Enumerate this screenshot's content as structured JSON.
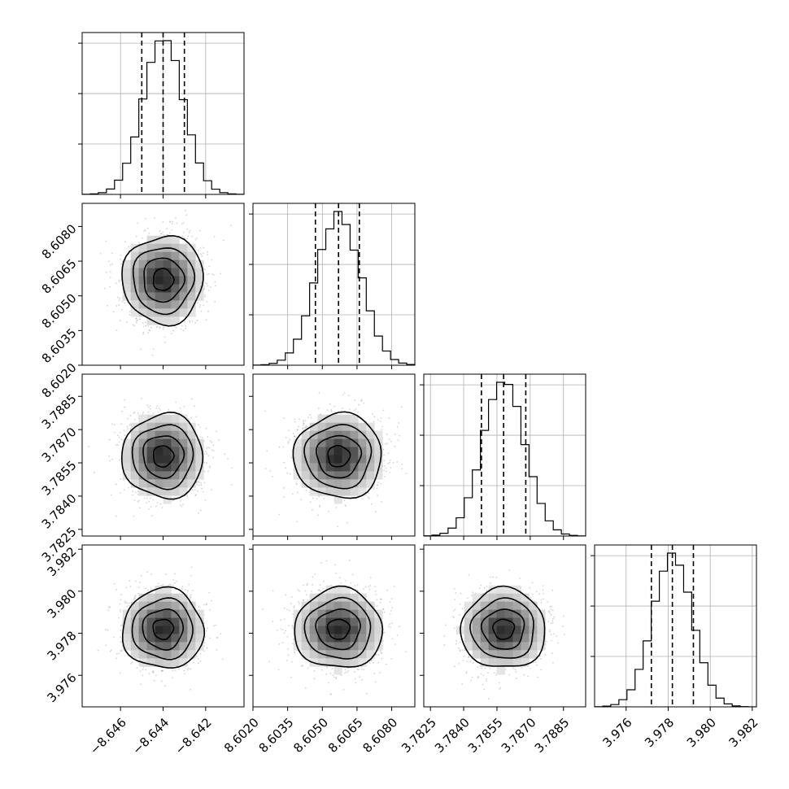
{
  "chart_data": {
    "type": "corner",
    "title": "",
    "variables": [
      {
        "label": "",
        "range": [
          -8.6478,
          -8.6402
        ],
        "ticks": [
          -8.646,
          -8.644,
          -8.642
        ],
        "tick_labels": [
          "−8.646",
          "−8.644",
          "−8.642"
        ],
        "quantiles": [
          -8.645,
          -8.644,
          -8.643
        ],
        "mean": -8.644,
        "sd": 0.00095,
        "hist_seed": 11
      },
      {
        "label": "",
        "range": [
          8.602,
          8.609
        ],
        "ticks": [
          8.602,
          8.6035,
          8.605,
          8.6065,
          8.608
        ],
        "tick_labels": [
          "8.6020",
          "8.6035",
          "8.6050",
          "8.6065",
          "8.6080"
        ],
        "quantiles": [
          8.6047,
          8.6057,
          8.6066
        ],
        "mean": 8.6057,
        "sd": 0.00095,
        "hist_seed": 23
      },
      {
        "label": "",
        "range": [
          3.7822,
          3.7895
        ],
        "ticks": [
          3.7825,
          3.784,
          3.7855,
          3.787,
          3.7885
        ],
        "tick_labels": [
          "3.7825",
          "3.7840",
          "3.7855",
          "3.7870",
          "3.7885"
        ],
        "quantiles": [
          3.7848,
          3.7858,
          3.7868
        ],
        "mean": 3.7858,
        "sd": 0.00095,
        "hist_seed": 37
      },
      {
        "label": "",
        "range": [
          3.9745,
          3.9822
        ],
        "ticks": [
          3.976,
          3.978,
          3.98,
          3.982
        ],
        "tick_labels": [
          "3.976",
          "3.978",
          "3.980",
          "3.982"
        ],
        "quantiles": [
          3.9772,
          3.9782,
          3.9792
        ],
        "mean": 3.9782,
        "sd": 0.00095,
        "hist_seed": 53
      }
    ],
    "histogram": {
      "bins": 20,
      "style": "step",
      "color": "#000000",
      "grid": true
    },
    "scatter": {
      "points": 1400,
      "color": "#808080"
    },
    "contour_levels": [
      0.118,
      0.393,
      0.675,
      0.865
    ],
    "quantile_line_style": "dashed"
  }
}
